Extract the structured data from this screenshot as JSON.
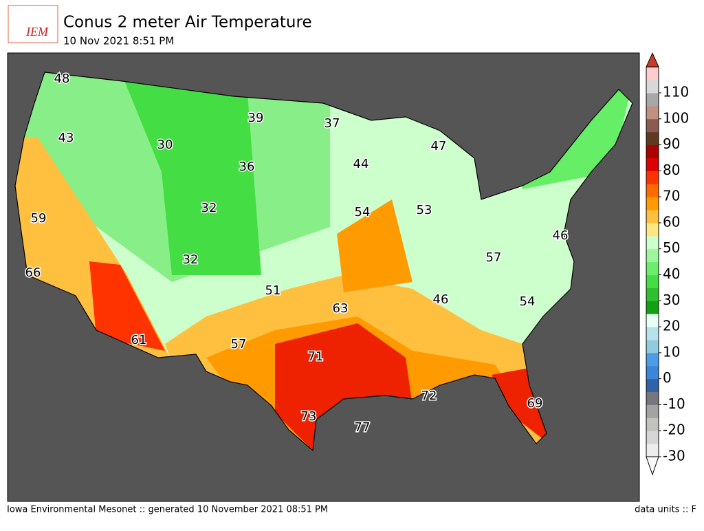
{
  "header": {
    "logo": "IEM",
    "title": "Conus 2 meter Air Temperature",
    "subtitle": "10 Nov 2021 8:51 PM"
  },
  "labels": [
    48,
    43,
    30,
    39,
    37,
    47,
    36,
    44,
    59,
    32,
    54,
    53,
    46,
    66,
    32,
    57,
    51,
    63,
    46,
    54,
    61,
    57,
    71,
    72,
    69,
    73,
    77
  ],
  "colorbar": {
    "ticks": [
      -30,
      -20,
      -10,
      0,
      10,
      20,
      30,
      40,
      50,
      60,
      70,
      80,
      90,
      100,
      110
    ],
    "colors": [
      "#ededed",
      "#d6d6d6",
      "#c2c2be",
      "#a3a3a3",
      "#76767f",
      "#2f62a6",
      "#3a86d8",
      "#4c9ce8",
      "#92cbe0",
      "#b6e2ea",
      "#e8fff5",
      "#14a014",
      "#2ec02e",
      "#44dd44",
      "#6ced6c",
      "#9df59d",
      "#ccffcc",
      "#ffe680",
      "#ffc040",
      "#ff9a00",
      "#ff6a00",
      "#ff3300",
      "#dd0000",
      "#ab0000",
      "#5e3a22",
      "#8c5a50",
      "#c09080",
      "#a8a8a8",
      "#d8d8d8",
      "#ffcccc"
    ]
  },
  "footer": {
    "left": "Iowa Environmental Mesonet :: generated 10 November 2021 08:51 PM",
    "right": "data units :: F"
  }
}
